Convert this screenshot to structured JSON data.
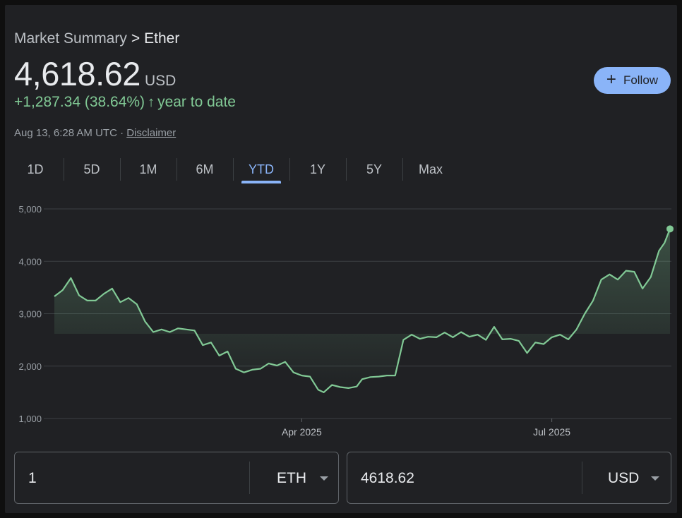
{
  "breadcrumb": {
    "parent": "Market Summary",
    "separator": ">",
    "current": "Ether"
  },
  "price": {
    "value": "4,618.62",
    "currency": "USD"
  },
  "change": {
    "text": "+1,287.34 (38.64%)",
    "arrow": "↑",
    "period": "year to date"
  },
  "meta": {
    "timestamp": "Aug 13, 6:28 AM UTC ·",
    "disclaimer": "Disclaimer"
  },
  "follow": {
    "icon": "plus-icon",
    "label": "Follow"
  },
  "tabs": [
    {
      "label": "1D"
    },
    {
      "label": "5D"
    },
    {
      "label": "1M"
    },
    {
      "label": "6M"
    },
    {
      "label": "YTD",
      "active": true
    },
    {
      "label": "1Y"
    },
    {
      "label": "5Y"
    },
    {
      "label": "Max"
    }
  ],
  "colors": {
    "accent": "#8ab4f8",
    "positive": "#81c995",
    "background": "#202124"
  },
  "chart_data": {
    "type": "area",
    "yticks": [
      "5,000",
      "4,000",
      "3,000",
      "2,000",
      "1,000"
    ],
    "ytick_values": [
      5000,
      4000,
      3000,
      2000,
      1000
    ],
    "ylim": [
      1000,
      5000
    ],
    "xtick_labels": [
      "Apr 2025",
      "Jul 2025"
    ],
    "xtick_dates": [
      "2025-04-01",
      "2025-07-01"
    ],
    "xlim": [
      "2025-01-01",
      "2025-08-13"
    ],
    "grid": true,
    "series": [
      {
        "x": [
          "2025-01-01",
          "2025-01-04",
          "2025-01-07",
          "2025-01-10",
          "2025-01-13",
          "2025-01-16",
          "2025-01-19",
          "2025-01-22",
          "2025-01-25",
          "2025-01-28",
          "2025-01-31",
          "2025-02-03",
          "2025-02-06",
          "2025-02-09",
          "2025-02-12",
          "2025-02-15",
          "2025-02-18",
          "2025-02-21",
          "2025-02-24",
          "2025-02-27",
          "2025-03-02",
          "2025-03-05",
          "2025-03-08",
          "2025-03-11",
          "2025-03-14",
          "2025-03-17",
          "2025-03-20",
          "2025-03-23",
          "2025-03-26",
          "2025-03-29",
          "2025-04-01",
          "2025-04-04",
          "2025-04-07",
          "2025-04-09",
          "2025-04-12",
          "2025-04-15",
          "2025-04-18",
          "2025-04-21",
          "2025-04-23",
          "2025-04-26",
          "2025-04-29",
          "2025-05-02",
          "2025-05-05",
          "2025-05-08",
          "2025-05-11",
          "2025-05-14",
          "2025-05-17",
          "2025-05-20",
          "2025-05-23",
          "2025-05-26",
          "2025-05-29",
          "2025-06-01",
          "2025-06-04",
          "2025-06-07",
          "2025-06-10",
          "2025-06-13",
          "2025-06-16",
          "2025-06-19",
          "2025-06-22",
          "2025-06-25",
          "2025-06-28",
          "2025-07-01",
          "2025-07-04",
          "2025-07-07",
          "2025-07-10",
          "2025-07-13",
          "2025-07-16",
          "2025-07-19",
          "2025-07-22",
          "2025-07-25",
          "2025-07-28",
          "2025-07-31",
          "2025-08-03",
          "2025-08-06",
          "2025-08-09",
          "2025-08-11",
          "2025-08-13"
        ],
        "y": [
          3330,
          3450,
          3680,
          3350,
          3250,
          3250,
          3380,
          3480,
          3220,
          3300,
          3180,
          2850,
          2650,
          2700,
          2650,
          2720,
          2700,
          2680,
          2400,
          2450,
          2200,
          2280,
          1950,
          1880,
          1930,
          1950,
          2050,
          2010,
          2080,
          1880,
          1820,
          1800,
          1550,
          1500,
          1640,
          1600,
          1580,
          1610,
          1750,
          1790,
          1800,
          1820,
          1820,
          2500,
          2600,
          2520,
          2560,
          2550,
          2640,
          2550,
          2650,
          2560,
          2600,
          2500,
          2750,
          2510,
          2520,
          2480,
          2250,
          2450,
          2420,
          2550,
          2600,
          2510,
          2700,
          3000,
          3250,
          3650,
          3750,
          3650,
          3820,
          3800,
          3480,
          3700,
          4200,
          4350,
          4618.62
        ]
      }
    ]
  },
  "converter": [
    {
      "value": "1",
      "unit": "ETH"
    },
    {
      "value": "4618.62",
      "unit": "USD"
    }
  ]
}
